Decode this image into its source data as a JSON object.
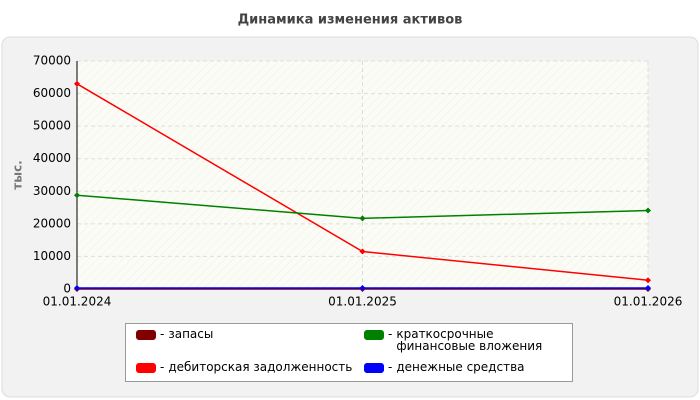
{
  "chart_data": {
    "type": "line",
    "title": "Динамика изменения активов",
    "y_label": "тыс.",
    "categories": [
      "01.01.2024",
      "01.01.2025",
      "01.01.2026"
    ],
    "series": [
      {
        "name": "запасы",
        "color": "#800000",
        "values": [
          0,
          0,
          0
        ]
      },
      {
        "name": "дебиторская задолженность",
        "color": "#ff0000",
        "values": [
          63000,
          11500,
          2700
        ]
      },
      {
        "name": "краткосрочные финансовые вложения",
        "color": "#008000",
        "values": [
          28800,
          21700,
          24100
        ]
      },
      {
        "name": "денежные средства",
        "color": "#0000ff",
        "values": [
          300,
          300,
          300
        ]
      }
    ],
    "ylim": [
      0,
      70000
    ],
    "yticks": [
      0,
      10000,
      20000,
      30000,
      40000,
      50000,
      60000,
      70000
    ],
    "grid": true
  }
}
